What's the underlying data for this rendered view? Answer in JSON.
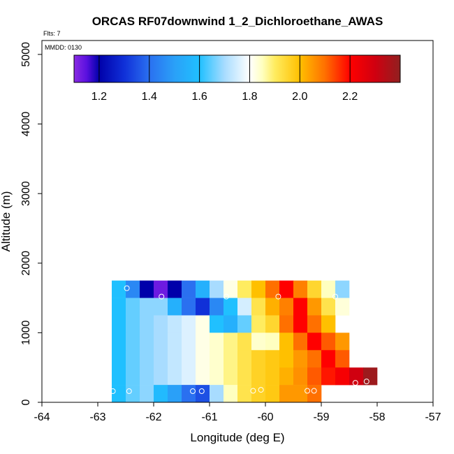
{
  "chart_data": {
    "type": "heatmap",
    "title": "ORCAS RF07downwind 1_2_Dichloroethane_AWAS",
    "flights_note": "Flts: 7",
    "date_note": "MMDD: 0130",
    "xlabel": "Longitude (deg E)",
    "ylabel": "Altitude (m)",
    "xlim": [
      -64,
      -57
    ],
    "ylim": [
      0,
      5200
    ],
    "x_ticks": [
      "-64",
      "-63",
      "-62",
      "-61",
      "-60",
      "-59",
      "-58",
      "-57"
    ],
    "y_ticks": [
      "0",
      "1000",
      "2000",
      "3000",
      "4000",
      "5000"
    ],
    "colorbar": {
      "min": 1.1,
      "max": 2.4,
      "ticks": [
        "1.2",
        "1.4",
        "1.6",
        "1.8",
        "2.0",
        "2.2"
      ],
      "stops": [
        {
          "v": 1.1,
          "c": "#8a2be2"
        },
        {
          "v": 1.15,
          "c": "#5a10e0"
        },
        {
          "v": 1.2,
          "c": "#0000aa"
        },
        {
          "v": 1.3,
          "c": "#1030d8"
        },
        {
          "v": 1.4,
          "c": "#2a70f0"
        },
        {
          "v": 1.5,
          "c": "#2aa0f8"
        },
        {
          "v": 1.6,
          "c": "#20c0ff"
        },
        {
          "v": 1.7,
          "c": "#a8dcff"
        },
        {
          "v": 1.8,
          "c": "#ffffff"
        },
        {
          "v": 1.85,
          "c": "#ffffc0"
        },
        {
          "v": 1.9,
          "c": "#ffec60"
        },
        {
          "v": 2.0,
          "c": "#ffc000"
        },
        {
          "v": 2.1,
          "c": "#ff7000"
        },
        {
          "v": 2.2,
          "c": "#ff0000"
        },
        {
          "v": 2.3,
          "c": "#d00010"
        },
        {
          "v": 2.4,
          "c": "#902020"
        }
      ]
    },
    "grid": false,
    "cell_size": {
      "lon": 0.25,
      "alt": 250
    },
    "cells": [
      {
        "lon": -62.625,
        "alt": 1625,
        "v": 1.6
      },
      {
        "lon": -62.375,
        "alt": 1625,
        "v": 1.45
      },
      {
        "lon": -62.125,
        "alt": 1625,
        "v": 1.2
      },
      {
        "lon": -61.875,
        "alt": 1625,
        "v": 1.13
      },
      {
        "lon": -61.625,
        "alt": 1625,
        "v": 1.2
      },
      {
        "lon": -61.375,
        "alt": 1625,
        "v": 1.4
      },
      {
        "lon": -61.125,
        "alt": 1625,
        "v": 1.55
      },
      {
        "lon": -60.875,
        "alt": 1625,
        "v": 1.7
      },
      {
        "lon": -60.625,
        "alt": 1625,
        "v": 1.82
      },
      {
        "lon": -60.375,
        "alt": 1625,
        "v": 1.9
      },
      {
        "lon": -60.125,
        "alt": 1625,
        "v": 2.0
      },
      {
        "lon": -59.875,
        "alt": 1625,
        "v": 2.1
      },
      {
        "lon": -59.625,
        "alt": 1625,
        "v": 2.2
      },
      {
        "lon": -59.375,
        "alt": 1625,
        "v": 2.08
      },
      {
        "lon": -59.125,
        "alt": 1625,
        "v": 1.95
      },
      {
        "lon": -58.875,
        "alt": 1625,
        "v": 1.85
      },
      {
        "lon": -58.625,
        "alt": 1625,
        "v": 1.68
      },
      {
        "lon": -62.625,
        "alt": 1375,
        "v": 1.6
      },
      {
        "lon": -62.375,
        "alt": 1375,
        "v": 1.65
      },
      {
        "lon": -62.125,
        "alt": 1375,
        "v": 1.68
      },
      {
        "lon": -61.875,
        "alt": 1375,
        "v": 1.68
      },
      {
        "lon": -61.625,
        "alt": 1375,
        "v": 1.55
      },
      {
        "lon": -61.375,
        "alt": 1375,
        "v": 1.4
      },
      {
        "lon": -61.125,
        "alt": 1375,
        "v": 1.3
      },
      {
        "lon": -60.875,
        "alt": 1375,
        "v": 1.45
      },
      {
        "lon": -60.625,
        "alt": 1375,
        "v": 1.6
      },
      {
        "lon": -60.375,
        "alt": 1375,
        "v": 1.75
      },
      {
        "lon": -60.125,
        "alt": 1375,
        "v": 1.92
      },
      {
        "lon": -59.875,
        "alt": 1375,
        "v": 2.02
      },
      {
        "lon": -59.625,
        "alt": 1375,
        "v": 2.08
      },
      {
        "lon": -59.375,
        "alt": 1375,
        "v": 2.2
      },
      {
        "lon": -59.125,
        "alt": 1375,
        "v": 2.05
      },
      {
        "lon": -58.875,
        "alt": 1375,
        "v": 1.92
      },
      {
        "lon": -58.625,
        "alt": 1375,
        "v": 1.83
      },
      {
        "lon": -62.625,
        "alt": 1125,
        "v": 1.6
      },
      {
        "lon": -62.375,
        "alt": 1125,
        "v": 1.65
      },
      {
        "lon": -62.125,
        "alt": 1125,
        "v": 1.68
      },
      {
        "lon": -61.875,
        "alt": 1125,
        "v": 1.7
      },
      {
        "lon": -61.625,
        "alt": 1125,
        "v": 1.73
      },
      {
        "lon": -61.375,
        "alt": 1125,
        "v": 1.76
      },
      {
        "lon": -61.125,
        "alt": 1125,
        "v": 1.82
      },
      {
        "lon": -60.875,
        "alt": 1125,
        "v": 1.6
      },
      {
        "lon": -60.625,
        "alt": 1125,
        "v": 1.55
      },
      {
        "lon": -60.375,
        "alt": 1125,
        "v": 1.65
      },
      {
        "lon": -60.125,
        "alt": 1125,
        "v": 1.9
      },
      {
        "lon": -59.875,
        "alt": 1125,
        "v": 1.95
      },
      {
        "lon": -59.625,
        "alt": 1125,
        "v": 2.1
      },
      {
        "lon": -59.375,
        "alt": 1125,
        "v": 2.2
      },
      {
        "lon": -59.125,
        "alt": 1125,
        "v": 2.1
      },
      {
        "lon": -58.875,
        "alt": 1125,
        "v": 2.0
      },
      {
        "lon": -62.625,
        "alt": 875,
        "v": 1.6
      },
      {
        "lon": -62.375,
        "alt": 875,
        "v": 1.65
      },
      {
        "lon": -62.125,
        "alt": 875,
        "v": 1.68
      },
      {
        "lon": -61.875,
        "alt": 875,
        "v": 1.7
      },
      {
        "lon": -61.625,
        "alt": 875,
        "v": 1.73
      },
      {
        "lon": -61.375,
        "alt": 875,
        "v": 1.76
      },
      {
        "lon": -61.125,
        "alt": 875,
        "v": 1.82
      },
      {
        "lon": -60.875,
        "alt": 875,
        "v": 1.84
      },
      {
        "lon": -60.625,
        "alt": 875,
        "v": 1.88
      },
      {
        "lon": -60.375,
        "alt": 875,
        "v": 1.92
      },
      {
        "lon": -60.125,
        "alt": 875,
        "v": 1.84
      },
      {
        "lon": -59.875,
        "alt": 875,
        "v": 1.85
      },
      {
        "lon": -59.625,
        "alt": 875,
        "v": 2.0
      },
      {
        "lon": -59.375,
        "alt": 875,
        "v": 2.1
      },
      {
        "lon": -59.125,
        "alt": 875,
        "v": 2.2
      },
      {
        "lon": -58.875,
        "alt": 875,
        "v": 2.12
      },
      {
        "lon": -58.625,
        "alt": 875,
        "v": 2.05
      },
      {
        "lon": -62.625,
        "alt": 625,
        "v": 1.6
      },
      {
        "lon": -62.375,
        "alt": 625,
        "v": 1.65
      },
      {
        "lon": -62.125,
        "alt": 625,
        "v": 1.68
      },
      {
        "lon": -61.875,
        "alt": 625,
        "v": 1.7
      },
      {
        "lon": -61.625,
        "alt": 625,
        "v": 1.73
      },
      {
        "lon": -61.375,
        "alt": 625,
        "v": 1.76
      },
      {
        "lon": -61.125,
        "alt": 625,
        "v": 1.82
      },
      {
        "lon": -60.875,
        "alt": 625,
        "v": 1.84
      },
      {
        "lon": -60.625,
        "alt": 625,
        "v": 1.88
      },
      {
        "lon": -60.375,
        "alt": 625,
        "v": 1.92
      },
      {
        "lon": -60.125,
        "alt": 625,
        "v": 1.96
      },
      {
        "lon": -59.875,
        "alt": 625,
        "v": 1.98
      },
      {
        "lon": -59.625,
        "alt": 625,
        "v": 2.0
      },
      {
        "lon": -59.375,
        "alt": 625,
        "v": 2.05
      },
      {
        "lon": -59.125,
        "alt": 625,
        "v": 2.1
      },
      {
        "lon": -58.875,
        "alt": 625,
        "v": 2.2
      },
      {
        "lon": -58.625,
        "alt": 625,
        "v": 2.12
      },
      {
        "lon": -62.625,
        "alt": 375,
        "v": 1.6
      },
      {
        "lon": -62.375,
        "alt": 375,
        "v": 1.65
      },
      {
        "lon": -62.125,
        "alt": 375,
        "v": 1.68
      },
      {
        "lon": -61.875,
        "alt": 375,
        "v": 1.7
      },
      {
        "lon": -61.625,
        "alt": 375,
        "v": 1.73
      },
      {
        "lon": -61.375,
        "alt": 375,
        "v": 1.76
      },
      {
        "lon": -61.125,
        "alt": 375,
        "v": 1.82
      },
      {
        "lon": -60.875,
        "alt": 375,
        "v": 1.84
      },
      {
        "lon": -60.625,
        "alt": 375,
        "v": 1.88
      },
      {
        "lon": -60.375,
        "alt": 375,
        "v": 1.92
      },
      {
        "lon": -60.125,
        "alt": 375,
        "v": 1.96
      },
      {
        "lon": -59.875,
        "alt": 375,
        "v": 1.98
      },
      {
        "lon": -59.625,
        "alt": 375,
        "v": 2.02
      },
      {
        "lon": -59.375,
        "alt": 375,
        "v": 2.06
      },
      {
        "lon": -59.125,
        "alt": 375,
        "v": 2.12
      },
      {
        "lon": -58.875,
        "alt": 375,
        "v": 2.18
      },
      {
        "lon": -58.625,
        "alt": 375,
        "v": 2.22
      },
      {
        "lon": -58.375,
        "alt": 375,
        "v": 2.3
      },
      {
        "lon": -58.125,
        "alt": 375,
        "v": 2.38
      },
      {
        "lon": -62.625,
        "alt": 125,
        "v": 1.6
      },
      {
        "lon": -62.375,
        "alt": 125,
        "v": 1.65
      },
      {
        "lon": -62.125,
        "alt": 125,
        "v": 1.68
      },
      {
        "lon": -61.875,
        "alt": 125,
        "v": 1.58
      },
      {
        "lon": -61.625,
        "alt": 125,
        "v": 1.5
      },
      {
        "lon": -61.375,
        "alt": 125,
        "v": 1.4
      },
      {
        "lon": -61.125,
        "alt": 125,
        "v": 1.35
      },
      {
        "lon": -60.875,
        "alt": 125,
        "v": 1.7
      },
      {
        "lon": -60.625,
        "alt": 125,
        "v": 1.85
      },
      {
        "lon": -60.375,
        "alt": 125,
        "v": 1.92
      },
      {
        "lon": -60.125,
        "alt": 125,
        "v": 1.96
      },
      {
        "lon": -59.875,
        "alt": 125,
        "v": 1.98
      },
      {
        "lon": -59.625,
        "alt": 125,
        "v": 2.05
      },
      {
        "lon": -59.375,
        "alt": 125,
        "v": 2.05
      },
      {
        "lon": -59.125,
        "alt": 125,
        "v": 2.1
      }
    ],
    "samples": [
      {
        "lon": -62.48,
        "alt": 1640
      },
      {
        "lon": -61.86,
        "alt": 1520
      },
      {
        "lon": -60.7,
        "alt": 1520
      },
      {
        "lon": -59.77,
        "alt": 1520
      },
      {
        "lon": -58.75,
        "alt": 1520
      },
      {
        "lon": -62.73,
        "alt": 160
      },
      {
        "lon": -62.44,
        "alt": 160
      },
      {
        "lon": -61.3,
        "alt": 160
      },
      {
        "lon": -61.14,
        "alt": 160
      },
      {
        "lon": -60.22,
        "alt": 165
      },
      {
        "lon": -60.08,
        "alt": 180
      },
      {
        "lon": -59.25,
        "alt": 165
      },
      {
        "lon": -59.13,
        "alt": 165
      },
      {
        "lon": -58.39,
        "alt": 280
      },
      {
        "lon": -58.19,
        "alt": 300
      }
    ]
  }
}
